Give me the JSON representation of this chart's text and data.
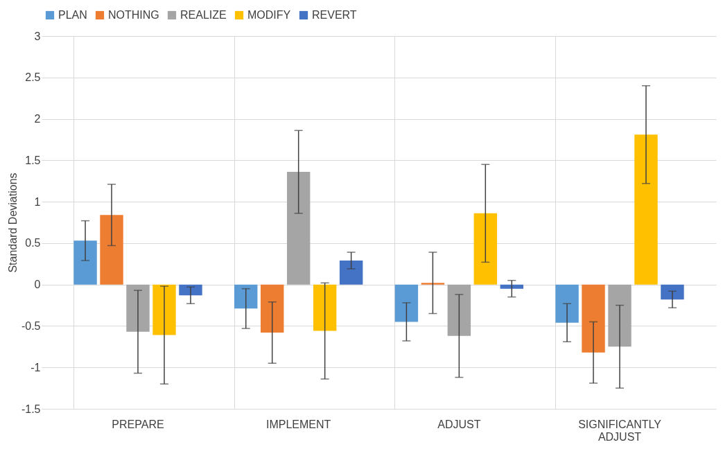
{
  "chart_data": {
    "type": "bar",
    "ylabel": "Standard Deviations",
    "categories": [
      "PREPARE",
      "IMPLEMENT",
      "ADJUST",
      "SIGNIFICANTLY ADJUST"
    ],
    "series": [
      {
        "name": "PLAN",
        "color": "#5b9bd5",
        "values": [
          0.53,
          -0.29,
          -0.45,
          -0.46
        ],
        "errors": [
          0.24,
          0.24,
          0.23,
          0.23
        ]
      },
      {
        "name": "NOTHING",
        "color": "#ed7d31",
        "values": [
          0.84,
          -0.58,
          0.02,
          -0.82
        ],
        "errors": [
          0.37,
          0.37,
          0.37,
          0.37
        ]
      },
      {
        "name": "REALIZE",
        "color": "#a5a5a5",
        "values": [
          -0.57,
          1.36,
          -0.62,
          -0.75
        ],
        "errors": [
          0.5,
          0.5,
          0.5,
          0.5
        ]
      },
      {
        "name": "MODIFY",
        "color": "#ffc000",
        "values": [
          -0.61,
          -0.56,
          0.86,
          1.81
        ],
        "errors": [
          0.59,
          0.58,
          0.59,
          0.59
        ]
      },
      {
        "name": "REVERT",
        "color": "#4472c4",
        "values": [
          -0.13,
          0.29,
          -0.05,
          -0.18
        ],
        "errors": [
          0.1,
          0.1,
          0.1,
          0.1
        ]
      }
    ],
    "ylim": [
      -1.5,
      3
    ],
    "yticks": [
      -1.5,
      -1,
      -0.5,
      0,
      0.5,
      1,
      1.5,
      2,
      2.5,
      3
    ],
    "grid": true,
    "legend": "top"
  }
}
